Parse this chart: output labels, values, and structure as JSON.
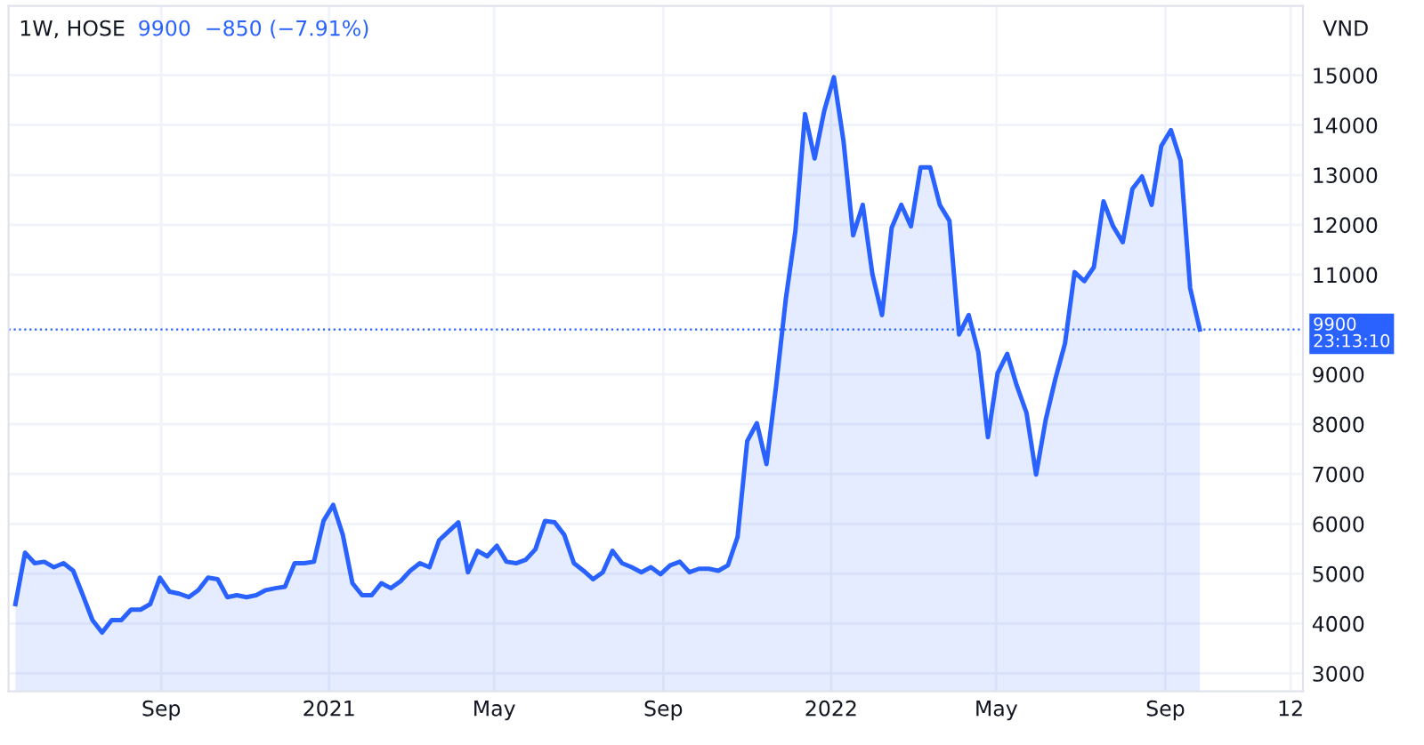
{
  "chart_data": {
    "type": "area",
    "title": "1W, HOSE",
    "subtitle": "9900  −850 (−7.91%)",
    "ylabel": "VND",
    "x": [
      "2020-05-18",
      "2020-05-25",
      "2020-06-01",
      "2020-06-08",
      "2020-06-15",
      "2020-06-22",
      "2020-06-29",
      "2020-07-06",
      "2020-07-13",
      "2020-07-20",
      "2020-07-27",
      "2020-08-03",
      "2020-08-10",
      "2020-08-17",
      "2020-08-24",
      "2020-08-31",
      "2020-09-07",
      "2020-09-14",
      "2020-09-21",
      "2020-09-28",
      "2020-10-05",
      "2020-10-12",
      "2020-10-19",
      "2020-10-26",
      "2020-11-02",
      "2020-11-09",
      "2020-11-16",
      "2020-11-23",
      "2020-11-30",
      "2020-12-07",
      "2020-12-14",
      "2020-12-21",
      "2020-12-28",
      "2021-01-04",
      "2021-01-11",
      "2021-01-18",
      "2021-01-25",
      "2021-02-01",
      "2021-02-08",
      "2021-02-15",
      "2021-02-22",
      "2021-03-01",
      "2021-03-08",
      "2021-03-15",
      "2021-03-22",
      "2021-03-29",
      "2021-04-05",
      "2021-04-12",
      "2021-04-19",
      "2021-04-26",
      "2021-05-03",
      "2021-05-10",
      "2021-05-17",
      "2021-05-24",
      "2021-05-31",
      "2021-06-07",
      "2021-06-14",
      "2021-06-21",
      "2021-06-28",
      "2021-07-05",
      "2021-07-12",
      "2021-07-19",
      "2021-07-26",
      "2021-08-02",
      "2021-08-09",
      "2021-08-16",
      "2021-08-23",
      "2021-08-30",
      "2021-09-06",
      "2021-09-13",
      "2021-09-20",
      "2021-09-27",
      "2021-10-04",
      "2021-10-11",
      "2021-10-18",
      "2021-10-25",
      "2021-11-01",
      "2021-11-08",
      "2021-11-15",
      "2021-11-22",
      "2021-11-29",
      "2021-12-06",
      "2021-12-13",
      "2021-12-20",
      "2021-12-27",
      "2022-01-03",
      "2022-01-10",
      "2022-01-17",
      "2022-01-24",
      "2022-01-31",
      "2022-02-07",
      "2022-02-14",
      "2022-02-21",
      "2022-02-28",
      "2022-03-07",
      "2022-03-14",
      "2022-03-21",
      "2022-03-28",
      "2022-04-04",
      "2022-04-11",
      "2022-04-18",
      "2022-04-25",
      "2022-05-02",
      "2022-05-09",
      "2022-05-16",
      "2022-05-23",
      "2022-05-30",
      "2022-06-06",
      "2022-06-13",
      "2022-06-20",
      "2022-06-27",
      "2022-07-04",
      "2022-07-11",
      "2022-07-18",
      "2022-07-25",
      "2022-08-01",
      "2022-08-08",
      "2022-08-15",
      "2022-08-22",
      "2022-08-29",
      "2022-09-05",
      "2022-09-12",
      "2022-09-19",
      "2022-09-26"
    ],
    "series": [
      {
        "color": "#2962ff",
        "values": [
          4390,
          5420,
          5210,
          5240,
          5130,
          5210,
          5060,
          4570,
          4070,
          3820,
          4070,
          4070,
          4280,
          4280,
          4390,
          4920,
          4640,
          4600,
          4530,
          4670,
          4920,
          4890,
          4530,
          4570,
          4530,
          4570,
          4670,
          4710,
          4740,
          5210,
          5210,
          5240,
          6060,
          6380,
          5780,
          4810,
          4570,
          4570,
          4810,
          4710,
          4850,
          5060,
          5210,
          5130,
          5670,
          5850,
          6030,
          5030,
          5460,
          5350,
          5560,
          5240,
          5210,
          5280,
          5490,
          6060,
          6030,
          5780,
          5210,
          5060,
          4890,
          5030,
          5460,
          5210,
          5130,
          5030,
          5130,
          4990,
          5170,
          5240,
          5030,
          5100,
          5100,
          5060,
          5170,
          5740,
          7660,
          8020,
          7200,
          8770,
          10500,
          11870,
          14220,
          13330,
          14290,
          14960,
          13680,
          11790,
          12400,
          11010,
          10190,
          11940,
          12400,
          11970,
          13150,
          13150,
          12400,
          12080,
          9800,
          10190,
          9440,
          7740,
          9020,
          9410,
          8770,
          8230,
          6990,
          8090,
          8910,
          9620,
          11050,
          10870,
          11150,
          12470,
          11970,
          11650,
          12720,
          12970,
          12400,
          13580,
          13900,
          13290,
          10730,
          9900
        ]
      }
    ],
    "xlim": [
      "2020-05-13",
      "2022-12-10"
    ],
    "xticks": [
      {
        "value": "2020-09-01",
        "label": "Sep"
      },
      {
        "value": "2021-01-01",
        "label": "2021"
      },
      {
        "value": "2021-05-01",
        "label": "May"
      },
      {
        "value": "2021-09-01",
        "label": "Sep"
      },
      {
        "value": "2022-01-01",
        "label": "2022"
      },
      {
        "value": "2022-05-01",
        "label": "May"
      },
      {
        "value": "2022-09-01",
        "label": "Sep"
      },
      {
        "value": "2022-12-01",
        "label": "12"
      }
    ],
    "ylim": [
      2640,
      16390
    ],
    "yticks": [
      3000,
      4000,
      5000,
      6000,
      7000,
      8000,
      9000,
      11000,
      12000,
      13000,
      14000,
      15000
    ],
    "ref_lines": [
      {
        "axis": "y",
        "value": 9900,
        "label": "9900\n23:13:10",
        "color": "#2962ff",
        "line_style": "dotted"
      }
    ],
    "grid": true,
    "legend": false,
    "line_style": "solid",
    "marker": "none"
  }
}
